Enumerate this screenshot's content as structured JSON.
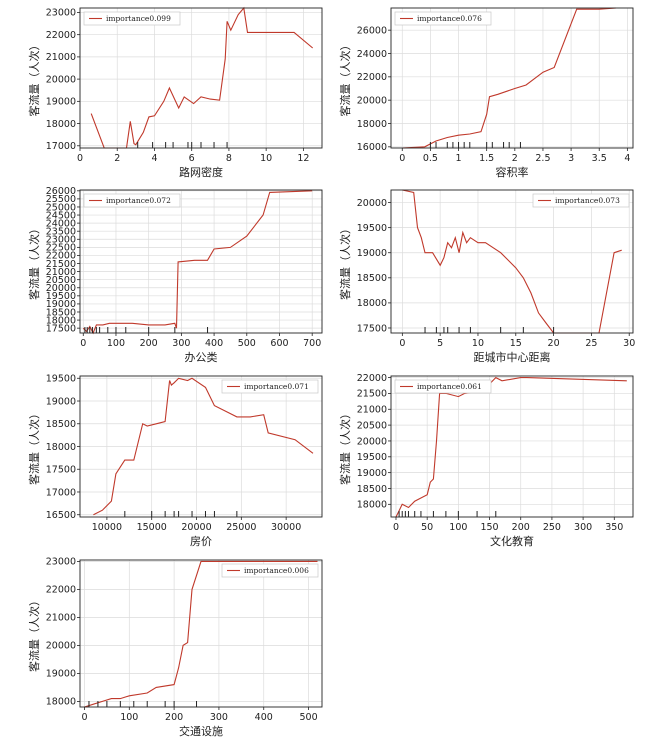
{
  "chart_data": [
    {
      "type": "line",
      "xlabel": "路网密度",
      "ylabel": "客流量（人次）",
      "xlim": [
        0,
        13
      ],
      "ylim": [
        16900,
        23200
      ],
      "xticks": [
        0,
        2,
        4,
        6,
        8,
        10,
        12
      ],
      "yticks": [
        17000,
        18000,
        19000,
        20000,
        21000,
        22000,
        23000
      ],
      "legend": "importance0.099",
      "legend_pos": "top-left",
      "color": "#c0392b",
      "grid": true,
      "series": [
        {
          "x": [
            0.6,
            1.3,
            2.5,
            2.7,
            2.9,
            3.0,
            3.4,
            3.7,
            4.0,
            4.5,
            4.8,
            5.3,
            5.6,
            6.1,
            6.5,
            7.0,
            7.5,
            7.8,
            7.9,
            8.1,
            8.5,
            8.8,
            9.0,
            11.5,
            12.5
          ],
          "y": [
            18450,
            16900,
            16900,
            18100,
            17100,
            17050,
            17600,
            18300,
            18350,
            19000,
            19600,
            18700,
            19200,
            18900,
            19200,
            19100,
            19050,
            20900,
            22600,
            22200,
            22900,
            23200,
            22100,
            22100,
            21400
          ]
        }
      ],
      "rug": [
        3.1,
        3.9,
        4.6,
        5.0,
        5.8,
        6.0,
        6.5,
        7.2,
        7.9
      ]
    },
    {
      "type": "line",
      "xlabel": "容积率",
      "ylabel": "客流量（人次）",
      "xlim": [
        -0.2,
        4.1
      ],
      "ylim": [
        15900,
        27900
      ],
      "xticks": [
        0,
        0.5,
        1.0,
        1.5,
        2.0,
        2.5,
        3.0,
        3.5,
        4.0
      ],
      "yticks": [
        16000,
        18000,
        20000,
        22000,
        24000,
        26000
      ],
      "legend": "importance0.076",
      "legend_pos": "top-left",
      "color": "#c0392b",
      "grid": true,
      "series": [
        {
          "x": [
            0,
            0.4,
            0.6,
            0.8,
            1.0,
            1.2,
            1.4,
            1.5,
            1.55,
            1.7,
            2.0,
            2.2,
            2.5,
            2.7,
            3.1,
            3.5,
            3.8
          ],
          "y": [
            15900,
            16000,
            16500,
            16800,
            17000,
            17100,
            17300,
            18800,
            20300,
            20500,
            21000,
            21300,
            22400,
            22800,
            27800,
            27800,
            27900
          ]
        }
      ],
      "rug": [
        0.5,
        0.6,
        0.8,
        0.9,
        1.0,
        1.1,
        1.2,
        1.5,
        1.6,
        1.8,
        1.9,
        2.1
      ]
    },
    {
      "type": "line",
      "xlabel": "办公类",
      "ylabel": "客流量（人次）",
      "xlim": [
        -10,
        730
      ],
      "ylim": [
        17200,
        26050
      ],
      "xticks": [
        0,
        100,
        200,
        300,
        400,
        500,
        600,
        700
      ],
      "yticks": [
        17500,
        18000,
        18500,
        19000,
        19500,
        20000,
        20500,
        21000,
        21500,
        22000,
        22500,
        23000,
        23500,
        24000,
        24500,
        25000,
        25500,
        26000
      ],
      "legend": "importance0.072",
      "legend_pos": "top-left",
      "color": "#c0392b",
      "grid": true,
      "series": [
        {
          "x": [
            0,
            10,
            20,
            30,
            40,
            60,
            80,
            100,
            150,
            200,
            250,
            280,
            285,
            290,
            340,
            380,
            400,
            450,
            500,
            550,
            570,
            700
          ],
          "y": [
            17500,
            17300,
            17600,
            17200,
            17700,
            17700,
            17800,
            17800,
            17800,
            17700,
            17700,
            17800,
            17500,
            21600,
            21700,
            21700,
            22400,
            22500,
            23200,
            24500,
            25900,
            26000
          ]
        }
      ],
      "rug": [
        5,
        12,
        20,
        28,
        40,
        50,
        75,
        100,
        130,
        200,
        280,
        380
      ]
    },
    {
      "type": "line",
      "xlabel": "距城市中心距离",
      "ylabel": "客流量（人次）",
      "xlim": [
        -1.5,
        30.5
      ],
      "ylim": [
        17400,
        20250
      ],
      "xticks": [
        0,
        5,
        10,
        15,
        20,
        25,
        30
      ],
      "yticks": [
        17500,
        18000,
        18500,
        19000,
        19500,
        20000
      ],
      "legend": "importance0.073",
      "legend_pos": "top-right",
      "color": "#c0392b",
      "grid": true,
      "series": [
        {
          "x": [
            0,
            1.5,
            2.0,
            2.5,
            3.0,
            4.0,
            5.0,
            5.5,
            6.0,
            6.5,
            7.0,
            7.5,
            8.0,
            8.5,
            9.0,
            10.0,
            11.0,
            12.0,
            13.0,
            15.0,
            16.0,
            17.0,
            18.0,
            19.0,
            20.0,
            21.0,
            22.0,
            23.0,
            25.0,
            26.0,
            28.0,
            29.0
          ],
          "y": [
            20300,
            20200,
            19500,
            19300,
            19000,
            19000,
            18750,
            18900,
            19200,
            19100,
            19300,
            19000,
            19400,
            19200,
            19300,
            19200,
            19200,
            19100,
            19000,
            18700,
            18500,
            18200,
            17800,
            17600,
            17400,
            17400,
            17350,
            17400,
            17400,
            17400,
            19000,
            19050
          ]
        }
      ],
      "rug": [
        3,
        4.5,
        5.5,
        6,
        7.5,
        9,
        13,
        16,
        20
      ]
    },
    {
      "type": "line",
      "xlabel": "房价",
      "ylabel": "客流量（人次）",
      "xlim": [
        7000,
        34000
      ],
      "ylim": [
        16450,
        19550
      ],
      "xticks": [
        10000,
        15000,
        20000,
        25000,
        30000
      ],
      "yticks": [
        16500,
        17000,
        17500,
        18000,
        18500,
        19000,
        19500
      ],
      "legend": "importance0.071",
      "legend_pos": "top-right",
      "color": "#c0392b",
      "grid": true,
      "series": [
        {
          "x": [
            8500,
            9500,
            10500,
            11000,
            12000,
            13000,
            14000,
            14500,
            15500,
            16500,
            17000,
            17200,
            17500,
            18000,
            19000,
            19500,
            21000,
            22000,
            23500,
            24500,
            26000,
            27500,
            28000,
            31000,
            33000
          ],
          "y": [
            16500,
            16600,
            16800,
            17400,
            17700,
            17700,
            18500,
            18450,
            18500,
            18550,
            19450,
            19350,
            19400,
            19500,
            19450,
            19500,
            19300,
            18900,
            18750,
            18650,
            18650,
            18700,
            18300,
            18150,
            17850
          ]
        }
      ],
      "rug": [
        12000,
        15000,
        16500,
        17500,
        18000,
        19500,
        21000,
        22000,
        24500
      ]
    },
    {
      "type": "line",
      "xlabel": "文化教育",
      "ylabel": "客流量（人次）",
      "xlim": [
        -8,
        380
      ],
      "ylim": [
        17600,
        22050
      ],
      "xticks": [
        0,
        50,
        100,
        150,
        200,
        250,
        300,
        350
      ],
      "yticks": [
        18000,
        18500,
        19000,
        19500,
        20000,
        20500,
        21000,
        21500,
        22000
      ],
      "legend": "importance0.061",
      "legend_pos": "top-left",
      "color": "#c0392b",
      "grid": true,
      "series": [
        {
          "x": [
            0,
            5,
            10,
            20,
            30,
            40,
            50,
            55,
            60,
            65,
            70,
            80,
            100,
            110,
            140,
            160,
            170,
            200,
            210,
            370
          ],
          "y": [
            17600,
            17800,
            18000,
            17900,
            18100,
            18200,
            18300,
            18700,
            18800,
            20000,
            21500,
            21500,
            21400,
            21500,
            21600,
            22000,
            21900,
            22000,
            22000,
            21900
          ]
        }
      ],
      "rug": [
        5,
        10,
        15,
        20,
        30,
        40,
        60,
        80,
        100,
        130,
        160
      ]
    },
    {
      "type": "line",
      "xlabel": "交通设施",
      "ylabel": "客流量（人次）",
      "xlim": [
        -10,
        530
      ],
      "ylim": [
        17800,
        23050
      ],
      "xticks": [
        0,
        100,
        200,
        300,
        400,
        500
      ],
      "yticks": [
        18000,
        19000,
        20000,
        21000,
        22000,
        23000
      ],
      "legend": "importance0.006",
      "legend_pos": "top-right",
      "color": "#c0392b",
      "grid": true,
      "series": [
        {
          "x": [
            0,
            20,
            40,
            60,
            80,
            100,
            140,
            160,
            200,
            210,
            220,
            230,
            240,
            250,
            260,
            270,
            520
          ],
          "y": [
            17800,
            17900,
            18000,
            18100,
            18100,
            18200,
            18300,
            18500,
            18600,
            19200,
            20000,
            20100,
            22000,
            22500,
            23000,
            23000,
            23000
          ]
        }
      ],
      "rug": [
        10,
        30,
        50,
        80,
        110,
        140,
        180,
        200,
        250
      ]
    }
  ]
}
